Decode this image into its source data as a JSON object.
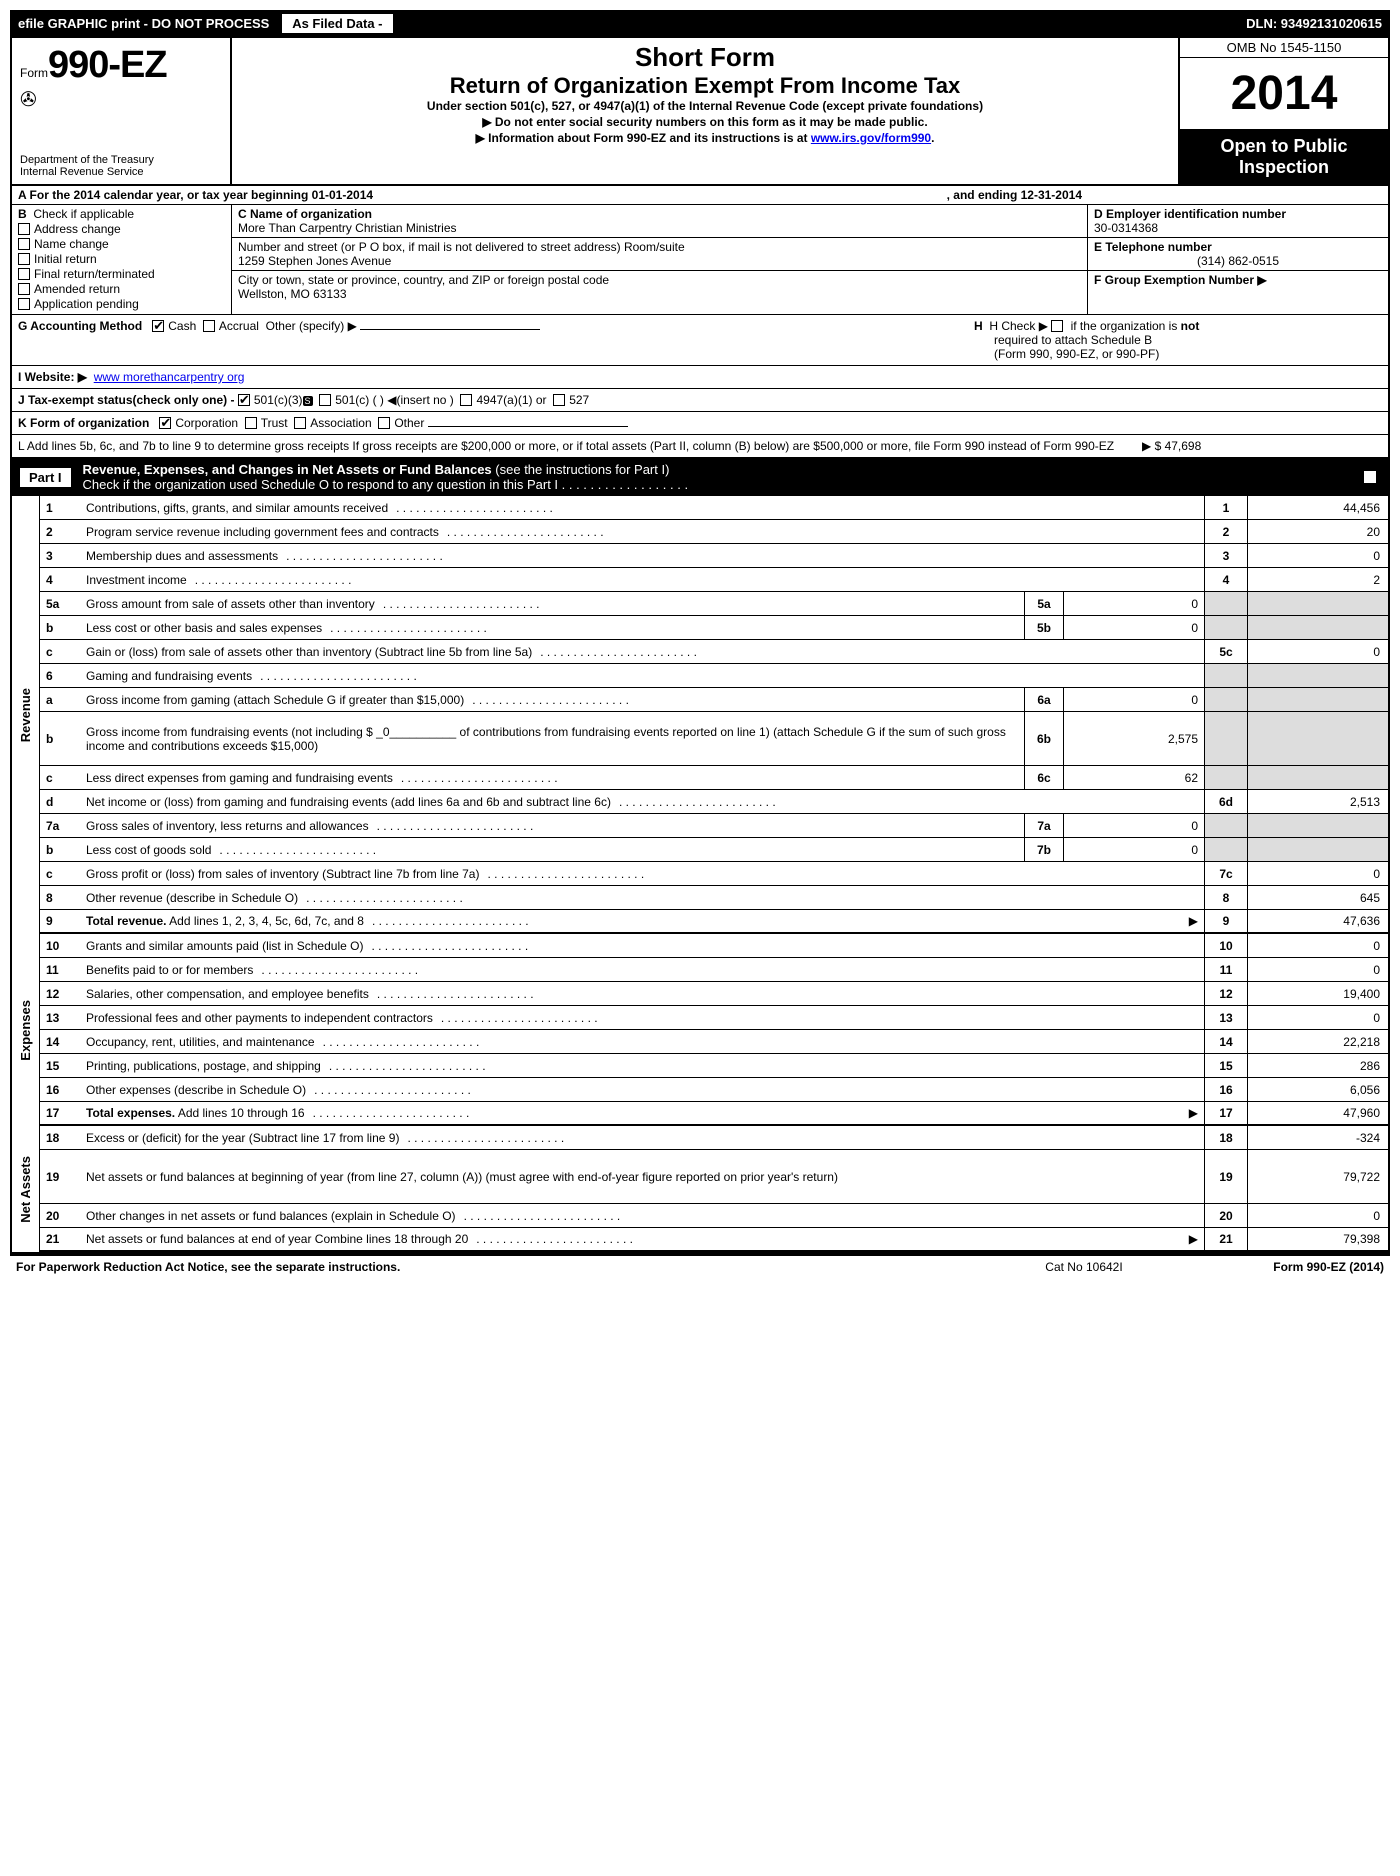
{
  "top_bar": {
    "left": "efile GRAPHIC print - DO NOT PROCESS",
    "filed": "As Filed Data -",
    "dln": "DLN: 93492131020615"
  },
  "header": {
    "form_prefix": "Form",
    "form_number": "990-EZ",
    "dept1": "Department of the Treasury",
    "dept2": "Internal Revenue Service",
    "short_form": "Short Form",
    "return_title": "Return of Organization Exempt From Income Tax",
    "under": "Under section 501(c), 527, or 4947(a)(1) of the Internal Revenue Code (except private foundations)",
    "arrow1": "▶ Do not enter social security numbers on this form as it may be made public.",
    "arrow2_pre": "▶ Information about Form 990-EZ and its instructions is at ",
    "arrow2_link": "www.irs.gov/form990",
    "arrow2_post": ".",
    "omb": "OMB No 1545-1150",
    "year": "2014",
    "open1": "Open to Public",
    "open2": "Inspection"
  },
  "row_a": {
    "label": "A  For the 2014 calendar year, or tax year beginning 01-01-2014",
    "ending": ", and ending 12-31-2014"
  },
  "box_b": {
    "title_b": "B",
    "title": "Check if applicable",
    "options": [
      "Address change",
      "Name change",
      "Initial return",
      "Final return/terminated",
      "Amended return",
      "Application pending"
    ]
  },
  "box_c": {
    "c_label": "C Name of organization",
    "c_name": "More Than Carpentry Christian Ministries",
    "street_label": "Number and street (or P O box, if mail is not delivered to street address) Room/suite",
    "street": "1259 Stephen Jones Avenue",
    "city_label": "City or town, state or province, country, and ZIP or foreign postal code",
    "city": "Wellston, MO  63133"
  },
  "box_d": {
    "d_label": "D Employer identification number",
    "ein": "30-0314368",
    "e_label": "E Telephone number",
    "phone": "(314) 862-0515",
    "f_label": "F Group Exemption Number  ▶"
  },
  "row_g": {
    "label": "G Accounting Method",
    "cash": "Cash",
    "accrual": "Accrual",
    "other": "Other (specify) ▶"
  },
  "row_h": {
    "label_pre": "H  Check ▶ ",
    "label_post": " if the organization is ",
    "not": "not",
    "line2": "required to attach Schedule B",
    "line3": "(Form 990, 990-EZ, or 990-PF)"
  },
  "row_i": {
    "label": "I Website: ▶",
    "url": "www morethancarpentry org"
  },
  "row_j": "J Tax-exempt status(check only one) - ",
  "row_j_opts": {
    "a": "501(c)(3)",
    "b": "501(c) (  ) ◀(insert no )",
    "c": "4947(a)(1) or",
    "d": "527"
  },
  "row_k": {
    "label": "K Form of organization",
    "opts": [
      "Corporation",
      "Trust",
      "Association",
      "Other"
    ]
  },
  "row_l": {
    "text": "L Add lines 5b, 6c, and 7b to line 9 to determine gross receipts  If gross receipts are $200,000 or more, or if total assets (Part II, column (B) below) are $500,000 or more, file Form 990 instead of Form 990-EZ",
    "arrow": "▶ $ 47,698"
  },
  "part1": {
    "label": "Part I",
    "title": "Revenue, Expenses, and Changes in Net Assets or Fund Balances",
    "subtitle": "(see the instructions for Part I)",
    "check_line": "Check if the organization used Schedule O to respond to any question in this Part I  . . . . . . . . . . . . . . . . . ."
  },
  "revenue": [
    {
      "n": "1",
      "d": "Contributions, gifts, grants, and similar amounts received",
      "rn": "1",
      "rv": "44,456"
    },
    {
      "n": "2",
      "d": "Program service revenue including government fees and contracts",
      "rn": "2",
      "rv": "20"
    },
    {
      "n": "3",
      "d": "Membership dues and assessments",
      "rn": "3",
      "rv": "0"
    },
    {
      "n": "4",
      "d": "Investment income",
      "rn": "4",
      "rv": "2"
    },
    {
      "n": "5a",
      "d": "Gross amount from sale of assets other than inventory",
      "sn": "5a",
      "sv": "0",
      "gray": true
    },
    {
      "n": "b",
      "d": "Less  cost or other basis and sales expenses",
      "sn": "5b",
      "sv": "0",
      "gray": true
    },
    {
      "n": "c",
      "d": "Gain or (loss) from sale of assets other than inventory (Subtract line 5b from line 5a)",
      "rn": "5c",
      "rv": "0"
    },
    {
      "n": "6",
      "d": "Gaming and fundraising events",
      "gray": true,
      "noval": true
    },
    {
      "n": "a",
      "d": "Gross income from gaming (attach Schedule G if greater than $15,000)",
      "sn": "6a",
      "sv": "0",
      "gray": true
    },
    {
      "n": "b",
      "d": "Gross income from fundraising events (not including $ _0__________ of contributions from fundraising events reported on line 1) (attach Schedule G if the sum of such gross income and contributions exceeds $15,000)",
      "sn": "6b",
      "sv": "2,575",
      "gray": true,
      "tall": true
    },
    {
      "n": "c",
      "d": "Less  direct expenses from gaming and fundraising events",
      "sn": "6c",
      "sv": "62",
      "gray": true
    },
    {
      "n": "d",
      "d": "Net income or (loss) from gaming and fundraising events (add lines 6a and 6b and subtract line 6c)",
      "rn": "6d",
      "rv": "2,513"
    },
    {
      "n": "7a",
      "d": "Gross sales of inventory, less returns and allowances",
      "sn": "7a",
      "sv": "0",
      "gray": true
    },
    {
      "n": "b",
      "d": "Less  cost of goods sold",
      "sn": "7b",
      "sv": "0",
      "gray": true
    },
    {
      "n": "c",
      "d": "Gross profit or (loss) from sales of inventory (Subtract line 7b from line 7a)",
      "rn": "7c",
      "rv": "0"
    },
    {
      "n": "8",
      "d": "Other revenue (describe in Schedule O)",
      "rn": "8",
      "rv": "645"
    },
    {
      "n": "9",
      "d": "Total revenue. Add lines 1, 2, 3, 4, 5c, 6d, 7c, and 8",
      "rn": "9",
      "rv": "47,636",
      "bold": true,
      "arrow": true
    }
  ],
  "expenses": [
    {
      "n": "10",
      "d": "Grants and similar amounts paid (list in Schedule O)",
      "rn": "10",
      "rv": "0"
    },
    {
      "n": "11",
      "d": "Benefits paid to or for members",
      "rn": "11",
      "rv": "0"
    },
    {
      "n": "12",
      "d": "Salaries, other compensation, and employee benefits",
      "rn": "12",
      "rv": "19,400"
    },
    {
      "n": "13",
      "d": "Professional fees and other payments to independent contractors",
      "rn": "13",
      "rv": "0"
    },
    {
      "n": "14",
      "d": "Occupancy, rent, utilities, and maintenance",
      "rn": "14",
      "rv": "22,218"
    },
    {
      "n": "15",
      "d": "Printing, publications, postage, and shipping",
      "rn": "15",
      "rv": "286"
    },
    {
      "n": "16",
      "d": "Other expenses (describe in Schedule O)",
      "rn": "16",
      "rv": "6,056"
    },
    {
      "n": "17",
      "d": "Total expenses. Add lines 10 through 16",
      "rn": "17",
      "rv": "47,960",
      "bold": true,
      "arrow": true
    }
  ],
  "netassets": [
    {
      "n": "18",
      "d": "Excess or (deficit) for the year (Subtract line 17 from line 9)",
      "rn": "18",
      "rv": "-324"
    },
    {
      "n": "19",
      "d": "Net assets or fund balances at beginning of year (from line 27, column (A)) (must agree with end-of-year figure reported on prior year's return)",
      "rn": "19",
      "rv": "79,722",
      "tall": true
    },
    {
      "n": "20",
      "d": "Other changes in net assets or fund balances (explain in Schedule O)",
      "rn": "20",
      "rv": "0"
    },
    {
      "n": "21",
      "d": "Net assets or fund balances at end of year Combine lines 18 through 20",
      "rn": "21",
      "rv": "79,398",
      "arrow": true
    }
  ],
  "side_labels": {
    "revenue": "Revenue",
    "expenses": "Expenses",
    "netassets": "Net Assets"
  },
  "footer": {
    "left": "For Paperwork Reduction Act Notice, see the separate instructions.",
    "center": "Cat No 10642I",
    "right": "Form 990-EZ (2014)"
  }
}
